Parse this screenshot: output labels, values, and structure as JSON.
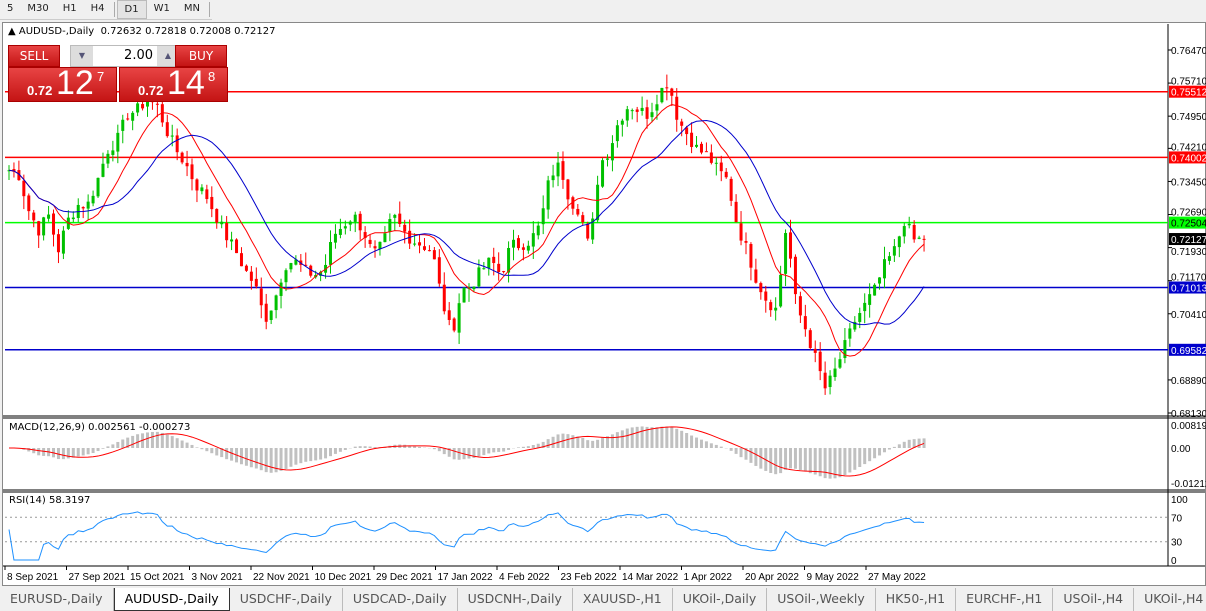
{
  "toolbar": {
    "timeframes": [
      "5",
      "M30",
      "H1",
      "H4",
      "D1",
      "W1",
      "MN"
    ],
    "active": "D1"
  },
  "chart": {
    "title": "AUDUSD-,Daily",
    "ohlc": "0.72632 0.72818 0.72008 0.72127",
    "trade": {
      "sell_label": "SELL",
      "buy_label": "BUY",
      "lot": "2.00",
      "sell_prefix": "0.72",
      "sell_big": "12",
      "sell_sup": "7",
      "buy_prefix": "0.72",
      "buy_big": "14",
      "buy_sup": "8"
    },
    "price_axis": [
      "0.76470",
      "0.75710",
      "0.74950",
      "0.74210",
      "0.73450",
      "0.72690",
      "0.71930",
      "0.71170",
      "0.70410",
      "0.68890",
      "0.68130"
    ],
    "price_range": [
      0.6813,
      0.7647
    ],
    "current_price": "0.72127",
    "hlines": [
      {
        "price": "0.75512",
        "color": "#ff0000"
      },
      {
        "price": "0.74002",
        "color": "#ff0000"
      },
      {
        "price": "0.72504",
        "color": "#00ff00"
      },
      {
        "price": "0.71013",
        "color": "#0000cc"
      },
      {
        "price": "0.69582",
        "color": "#0000cc"
      }
    ],
    "closes": [
      0.7371,
      0.736,
      0.7279,
      0.7233,
      0.7268,
      0.7187,
      0.7256,
      0.7291,
      0.7291,
      0.7348,
      0.7417,
      0.744,
      0.7498,
      0.7509,
      0.7532,
      0.7521,
      0.7463,
      0.7417,
      0.7383,
      0.7337,
      0.7314,
      0.7268,
      0.7222,
      0.7187,
      0.7141,
      0.7107,
      0.7027,
      0.7073,
      0.7153,
      0.7164,
      0.7141,
      0.713,
      0.7141,
      0.7222,
      0.7245,
      0.7268,
      0.7233,
      0.7176,
      0.7199,
      0.7268,
      0.7233,
      0.721,
      0.7199,
      0.7187,
      0.7073,
      0.6992,
      0.7096,
      0.7107,
      0.7141,
      0.7164,
      0.713,
      0.7199,
      0.7199,
      0.721,
      0.7245,
      0.736,
      0.7383,
      0.7302,
      0.7279,
      0.7187,
      0.7383,
      0.7417,
      0.7486,
      0.7521,
      0.7509,
      0.7498,
      0.7544,
      0.7578,
      0.7486,
      0.7452,
      0.7417,
      0.7406,
      0.7371,
      0.7348,
      0.7245,
      0.7187,
      0.7119,
      0.7073,
      0.705,
      0.7245,
      0.7061,
      0.7004,
      0.6935,
      0.6866,
      0.6912,
      0.6969,
      0.7027,
      0.7061,
      0.7096,
      0.7153,
      0.7187,
      0.7256,
      0.721,
      0.72127
    ],
    "colors": {
      "bull": "#00c000",
      "bear": "#ff0000",
      "ma_fast": "#ff0000",
      "ma_slow": "#0000cc"
    }
  },
  "macd": {
    "label": "MACD(12,26,9) 0.002561 -0.000273",
    "axis": [
      "0.008197",
      "0.00",
      "-0.01212"
    ]
  },
  "rsi": {
    "label": "RSI(14) 58.3197",
    "axis": [
      "100",
      "70",
      "30",
      "0"
    ]
  },
  "time_axis": [
    "8 Sep 2021",
    "27 Sep 2021",
    "15 Oct 2021",
    "3 Nov 2021",
    "22 Nov 2021",
    "10 Dec 2021",
    "29 Dec 2021",
    "17 Jan 2022",
    "4 Feb 2022",
    "23 Feb 2022",
    "14 Mar 2022",
    "1 Apr 2022",
    "20 Apr 2022",
    "9 May 2022",
    "27 May 2022"
  ],
  "tabs": [
    "EURUSD-,Daily",
    "AUDUSD-,Daily",
    "USDCHF-,Daily",
    "USDCAD-,Daily",
    "USDCNH-,Daily",
    "XAUUSD-,H1",
    "UKOil-,Daily",
    "USOil-,Weekly",
    "HK50-,H1",
    "EURCHF-,H1",
    "USOil-,H4",
    "UKOil-,H4"
  ],
  "active_tab": "AUDUSD-,Daily"
}
